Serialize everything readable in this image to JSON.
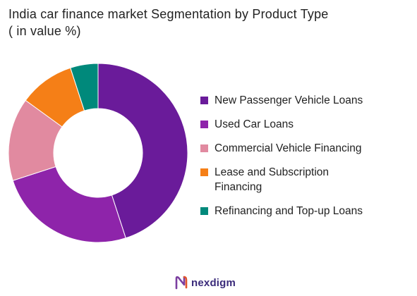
{
  "header": {
    "title_line1": "India car finance market Segmentation by Product Type",
    "title_line2": "( in value %)"
  },
  "chart_data": {
    "type": "pie",
    "donut": true,
    "title": "India car finance market Segmentation by Product Type ( in value %)",
    "categories": [
      "New Passenger Vehicle Loans",
      "Used Car Loans",
      "Commercial Vehicle Financing",
      "Lease and Subscription Financing",
      "Refinancing and Top-up Loans"
    ],
    "values": [
      45,
      25,
      15,
      10,
      5
    ],
    "colors": [
      "#6a1b9a",
      "#8e24aa",
      "#e18aa0",
      "#f57f17",
      "#00897b"
    ],
    "legend_position": "right"
  },
  "legend": {
    "items": [
      {
        "label": "New Passenger Vehicle Loans",
        "color": "#6a1b9a"
      },
      {
        "label": "Used Car Loans",
        "color": "#8e24aa"
      },
      {
        "label": "Commercial Vehicle Financing",
        "color": "#e18aa0"
      },
      {
        "label": "Lease and Subscription Financing",
        "color": "#f57f17"
      },
      {
        "label": "Refinancing and Top-up Loans",
        "color": "#00897b"
      }
    ]
  },
  "footer": {
    "brand": "nexdigm",
    "brand_color": "#3a2a7a",
    "logo_icon": "nexdigm-logo-icon"
  }
}
